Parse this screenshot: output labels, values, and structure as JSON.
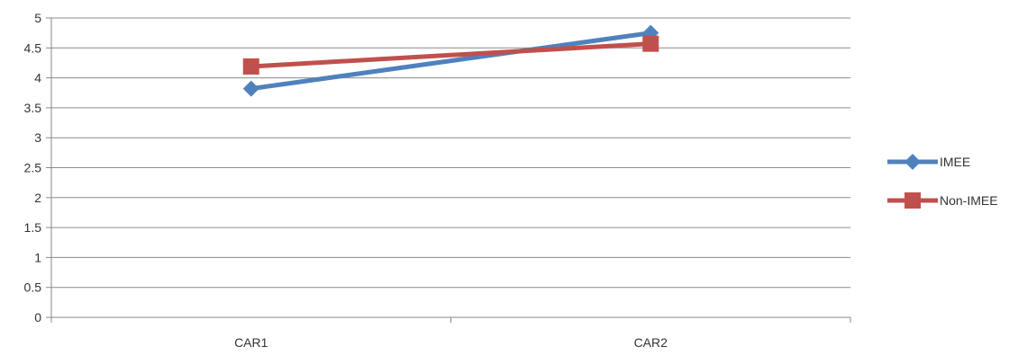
{
  "chart_data": {
    "type": "line",
    "title": "",
    "xlabel": "",
    "ylabel": "",
    "categories": [
      "CAR1",
      "CAR2"
    ],
    "ylim": [
      0,
      5
    ],
    "yticks": [
      0,
      0.5,
      1,
      1.5,
      2,
      2.5,
      3,
      3.5,
      4,
      4.5,
      5
    ],
    "grid": true,
    "legend_position": "right",
    "series": [
      {
        "name": "IMEE",
        "values": [
          3.82,
          4.75
        ],
        "color": "#4F81BD",
        "marker": "diamond"
      },
      {
        "name": "Non-IMEE",
        "values": [
          4.19,
          4.57
        ],
        "color": "#C0504D",
        "marker": "square"
      }
    ]
  }
}
